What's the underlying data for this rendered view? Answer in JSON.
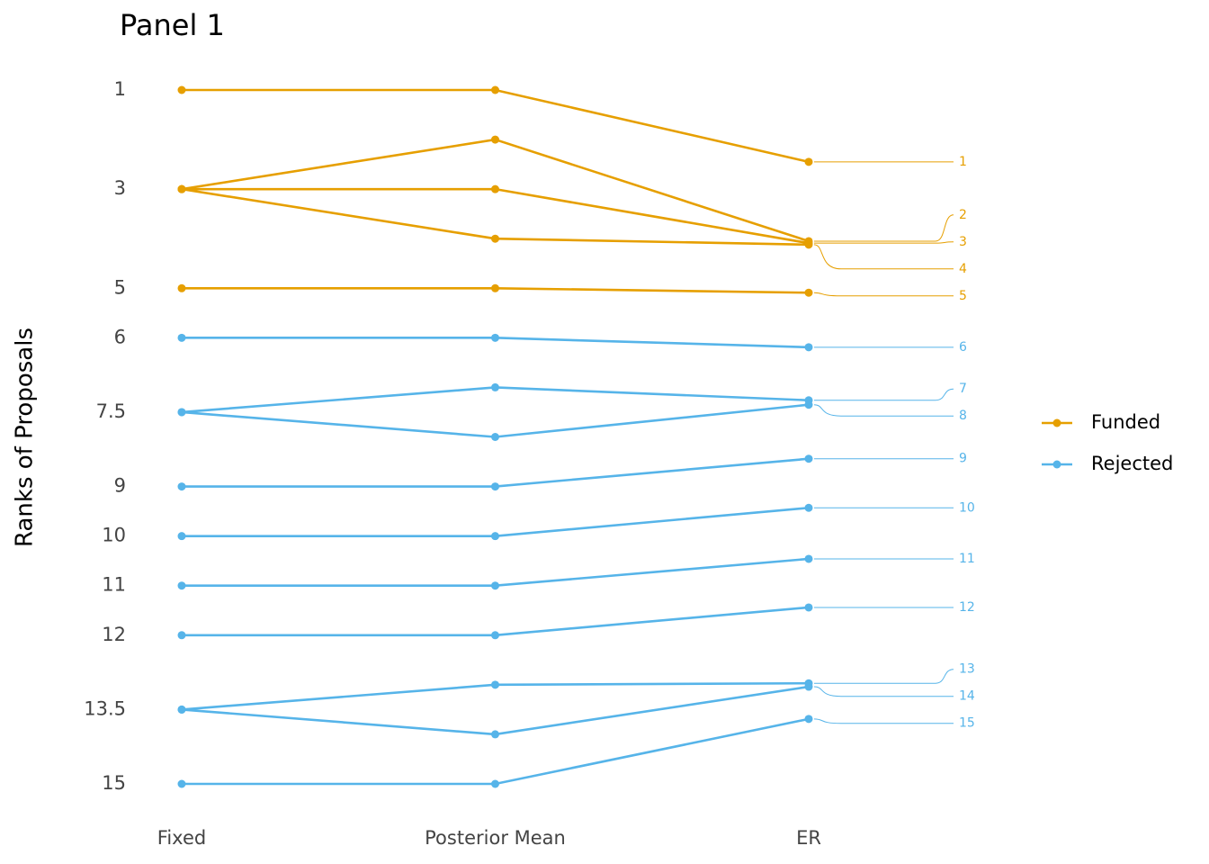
{
  "chart_data": {
    "type": "line",
    "title": "Panel 1",
    "y_label": "Ranks of Proposals",
    "categories": [
      "Fixed",
      "Posterior Mean",
      "ER"
    ],
    "ylim": [
      1,
      15
    ],
    "y_inverted": true,
    "yticks": [
      1,
      3,
      5,
      6,
      7.5,
      9,
      10,
      11,
      12,
      13.5,
      15
    ],
    "legend_position": "right",
    "groups": [
      {
        "name": "Funded",
        "color": "#E69F00"
      },
      {
        "name": "Rejected",
        "color": "#56B4E9"
      }
    ],
    "series": [
      {
        "name": "1",
        "group": 0,
        "values": [
          1,
          1,
          2.45
        ]
      },
      {
        "name": "2",
        "group": 0,
        "values": [
          3,
          2,
          4.05
        ]
      },
      {
        "name": "3",
        "group": 0,
        "values": [
          3,
          3,
          4.09
        ]
      },
      {
        "name": "4",
        "group": 0,
        "values": [
          3,
          4,
          4.12
        ]
      },
      {
        "name": "5",
        "group": 0,
        "values": [
          5,
          5,
          5.09
        ]
      },
      {
        "name": "6",
        "group": 1,
        "values": [
          6,
          6,
          6.19
        ]
      },
      {
        "name": "7",
        "group": 1,
        "values": [
          7.5,
          7,
          7.26
        ]
      },
      {
        "name": "8",
        "group": 1,
        "values": [
          7.5,
          8,
          7.35
        ]
      },
      {
        "name": "9",
        "group": 1,
        "values": [
          9,
          9,
          8.44
        ]
      },
      {
        "name": "10",
        "group": 1,
        "values": [
          10,
          10,
          9.43
        ]
      },
      {
        "name": "11",
        "group": 1,
        "values": [
          11,
          11,
          10.46
        ]
      },
      {
        "name": "12",
        "group": 1,
        "values": [
          12,
          12,
          11.44
        ]
      },
      {
        "name": "13",
        "group": 1,
        "values": [
          13.5,
          13,
          12.97
        ]
      },
      {
        "name": "14",
        "group": 1,
        "values": [
          13.5,
          14,
          13.04
        ]
      },
      {
        "name": "15",
        "group": 1,
        "values": [
          15,
          15,
          13.69
        ]
      }
    ]
  }
}
